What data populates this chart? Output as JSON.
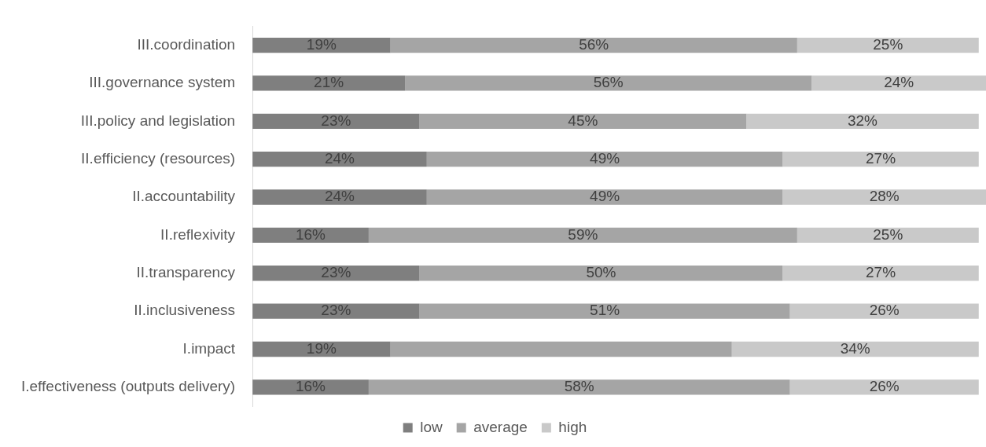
{
  "chart_data": {
    "type": "bar",
    "orientation": "horizontal",
    "stacked": true,
    "categories": [
      "III.coordination",
      "III.governance system",
      "III.policy and legislation",
      "II.efficiency (resources)",
      "II.accountability",
      "II.reflexivity",
      "II.transparency",
      "II.inclusiveness",
      "I.impact",
      "I.effectiveness (outputs delivery)"
    ],
    "series": [
      {
        "name": "low",
        "color": "#7f7f7f",
        "values": [
          19,
          21,
          23,
          24,
          24,
          16,
          23,
          23,
          19,
          16
        ],
        "value_labels": [
          "19%",
          "21%",
          "23%",
          "24%",
          "24%",
          "16%",
          "23%",
          "23%",
          "19%",
          "16%"
        ]
      },
      {
        "name": "average",
        "color": "#a5a5a5",
        "values": [
          56,
          56,
          45,
          49,
          49,
          59,
          50,
          51,
          47,
          58
        ],
        "value_labels": [
          "56%",
          "56%",
          "45%",
          "49%",
          "49%",
          "59%",
          "50%",
          "51%",
          null,
          "58%"
        ]
      },
      {
        "name": "high",
        "color": "#c9c9c9",
        "values": [
          25,
          24,
          32,
          27,
          28,
          25,
          27,
          26,
          34,
          26
        ],
        "value_labels": [
          "25%",
          "24%",
          "32%",
          "27%",
          "28%",
          "25%",
          "27%",
          "26%",
          "34%",
          "26%"
        ]
      }
    ],
    "xlim": [
      0,
      101
    ],
    "grid": false,
    "legend": "bottom",
    "tick_labels": "y"
  }
}
